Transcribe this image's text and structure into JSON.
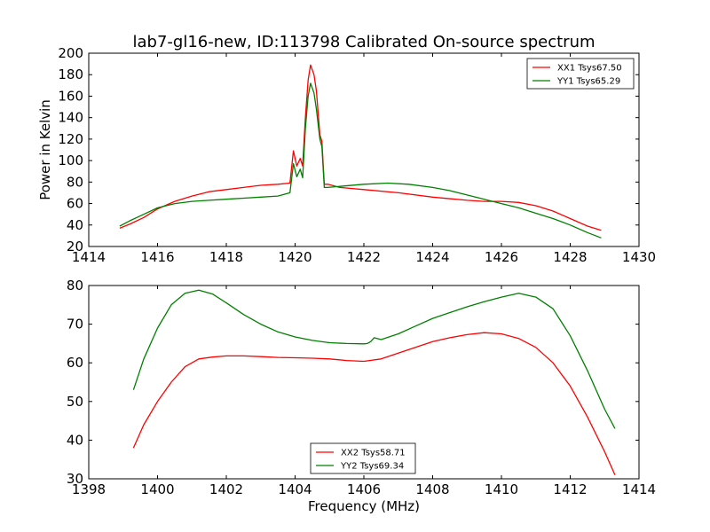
{
  "title": "lab7-gl16-new, ID:113798 Calibrated On-source spectrum",
  "chart_data": [
    {
      "type": "line",
      "xlabel": "",
      "ylabel": "Power in Kelvin",
      "xlim": [
        1414,
        1430
      ],
      "ylim": [
        20,
        200
      ],
      "xticks": [
        "1414",
        "1416",
        "1418",
        "1420",
        "1422",
        "1424",
        "1426",
        "1428",
        "1430"
      ],
      "yticks": [
        "20",
        "40",
        "60",
        "80",
        "100",
        "120",
        "140",
        "160",
        "180",
        "200"
      ],
      "legend_position": "top-right",
      "grid": false,
      "series": [
        {
          "name": "XX1 Tsys67.50",
          "color": "#ff0000",
          "x": [
            1414.9,
            1415.2,
            1415.6,
            1416.0,
            1416.5,
            1417.0,
            1417.5,
            1418.0,
            1418.5,
            1419.0,
            1419.5,
            1419.85,
            1419.95,
            1420.05,
            1420.15,
            1420.22,
            1420.3,
            1420.38,
            1420.45,
            1420.55,
            1420.62,
            1420.72,
            1420.78,
            1420.85,
            1420.95,
            1421.3,
            1422.0,
            1423.0,
            1424.0,
            1425.0,
            1425.5,
            1426.0,
            1426.5,
            1427.0,
            1427.5,
            1428.0,
            1428.5,
            1428.9
          ],
          "y": [
            37,
            41,
            47,
            55,
            62,
            67,
            71,
            73,
            75,
            77,
            78,
            79,
            109,
            95,
            102,
            95,
            140,
            175,
            189,
            180,
            165,
            124,
            118,
            78,
            78,
            75,
            73,
            70,
            66,
            63,
            62,
            62,
            61,
            58,
            53,
            46,
            39,
            35
          ]
        },
        {
          "name": "YY1 Tsys65.29",
          "color": "#008000",
          "x": [
            1414.9,
            1415.2,
            1415.6,
            1416.0,
            1416.5,
            1417.0,
            1417.5,
            1418.0,
            1418.5,
            1419.0,
            1419.5,
            1419.85,
            1419.95,
            1420.05,
            1420.15,
            1420.22,
            1420.3,
            1420.38,
            1420.45,
            1420.55,
            1420.62,
            1420.72,
            1420.78,
            1420.85,
            1420.95,
            1421.3,
            1422.0,
            1422.7,
            1423.3,
            1424.0,
            1424.5,
            1425.0,
            1425.5,
            1426.0,
            1426.5,
            1427.0,
            1427.5,
            1428.0,
            1428.5,
            1428.9
          ],
          "y": [
            39,
            44,
            50,
            56,
            60,
            62,
            63,
            64,
            65,
            66,
            67,
            70,
            97,
            85,
            92,
            84,
            130,
            160,
            172,
            163,
            148,
            120,
            113,
            75,
            75,
            76,
            78,
            79,
            78,
            75,
            72,
            68,
            64,
            60,
            56,
            51,
            46,
            40,
            33,
            28
          ]
        }
      ]
    },
    {
      "type": "line",
      "xlabel": "Frequency (MHz)",
      "ylabel": "",
      "xlim": [
        1398,
        1414
      ],
      "ylim": [
        30,
        80
      ],
      "xticks": [
        "1398",
        "1400",
        "1402",
        "1404",
        "1406",
        "1408",
        "1410",
        "1412",
        "1414"
      ],
      "yticks": [
        "30",
        "40",
        "50",
        "60",
        "70",
        "80"
      ],
      "legend_position": "lower-center",
      "grid": false,
      "series": [
        {
          "name": "XX2 Tsys58.71",
          "color": "#ff0000",
          "x": [
            1399.3,
            1399.6,
            1400.0,
            1400.4,
            1400.8,
            1401.2,
            1401.6,
            1402.0,
            1402.5,
            1403.0,
            1403.5,
            1404.0,
            1404.5,
            1405.0,
            1405.5,
            1406.0,
            1406.5,
            1407.0,
            1407.5,
            1408.0,
            1408.5,
            1409.0,
            1409.5,
            1410.0,
            1410.5,
            1411.0,
            1411.5,
            1412.0,
            1412.5,
            1413.0,
            1413.3
          ],
          "y": [
            38,
            44,
            50,
            55,
            59,
            61,
            61.5,
            61.8,
            61.8,
            61.6,
            61.4,
            61.3,
            61.2,
            61,
            60.6,
            60.4,
            61,
            62.5,
            64,
            65.5,
            66.5,
            67.3,
            67.8,
            67.5,
            66.3,
            64,
            60,
            54,
            46,
            37,
            31
          ]
        },
        {
          "name": "YY2 Tsys69.34",
          "color": "#008000",
          "x": [
            1399.3,
            1399.6,
            1400.0,
            1400.4,
            1400.8,
            1401.2,
            1401.6,
            1402.0,
            1402.5,
            1403.0,
            1403.5,
            1404.0,
            1404.5,
            1405.0,
            1405.5,
            1406.0,
            1406.1,
            1406.2,
            1406.3,
            1406.5,
            1407.0,
            1407.5,
            1408.0,
            1408.5,
            1409.0,
            1409.5,
            1410.0,
            1410.5,
            1411.0,
            1411.5,
            1412.0,
            1412.5,
            1413.0,
            1413.3
          ],
          "y": [
            53,
            61,
            69,
            75,
            78,
            78.8,
            77.8,
            75.5,
            72.5,
            70,
            68,
            66.7,
            65.8,
            65.2,
            65,
            64.9,
            65,
            65.5,
            66.5,
            66,
            67.5,
            69.5,
            71.5,
            73,
            74.5,
            75.8,
            77,
            78,
            77,
            74,
            67,
            58,
            48,
            43
          ]
        }
      ]
    }
  ]
}
